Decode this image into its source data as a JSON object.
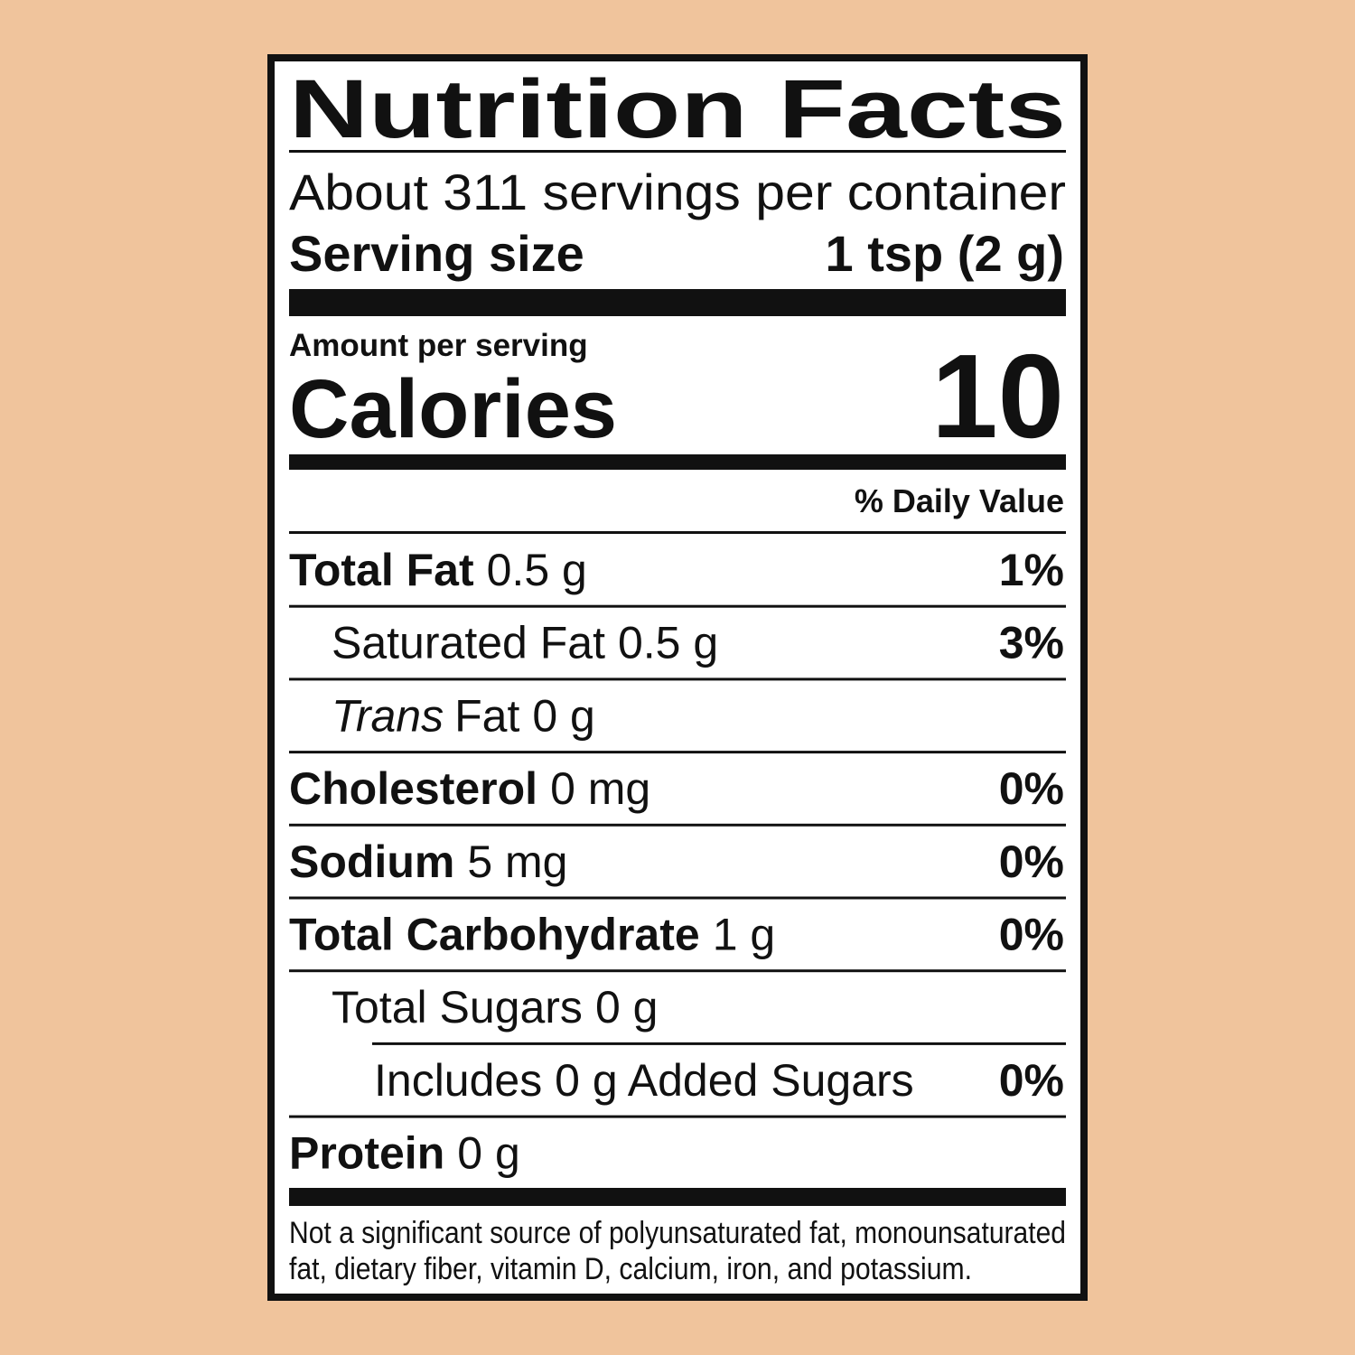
{
  "title": "Nutrition Facts",
  "servings": "About 311 servings per container",
  "serving_size": {
    "label": "Serving size",
    "value": "1 tsp (2 g)"
  },
  "amount_per_serving": "Amount per serving",
  "calories": {
    "label": "Calories",
    "value": "10"
  },
  "daily_value_header": "% Daily Value",
  "rows": [
    {
      "name": "Total Fat",
      "amount": "0.5 g",
      "dv": "1%"
    },
    {
      "name": "Saturated Fat",
      "amount": "0.5 g",
      "dv": "3%"
    },
    {
      "name_italic": "Trans",
      "name": "Fat",
      "amount": "0 g"
    },
    {
      "name": "Cholesterol",
      "amount": "0 mg",
      "dv": "0%"
    },
    {
      "name": "Sodium",
      "amount": "5 mg",
      "dv": "0%"
    },
    {
      "name": "Total Carbohydrate",
      "amount": "1 g",
      "dv": "0%"
    },
    {
      "name": "Total Sugars",
      "amount": "0 g"
    },
    {
      "name": "Includes 0 g Added Sugars",
      "dv": "0%"
    },
    {
      "name": "Protein",
      "amount": "0 g"
    }
  ],
  "footnote": [
    "Not a significant source of polyunsaturated fat, monounsaturated",
    "fat, dietary fiber, vitamin D, calcium, iron, and potassium."
  ]
}
